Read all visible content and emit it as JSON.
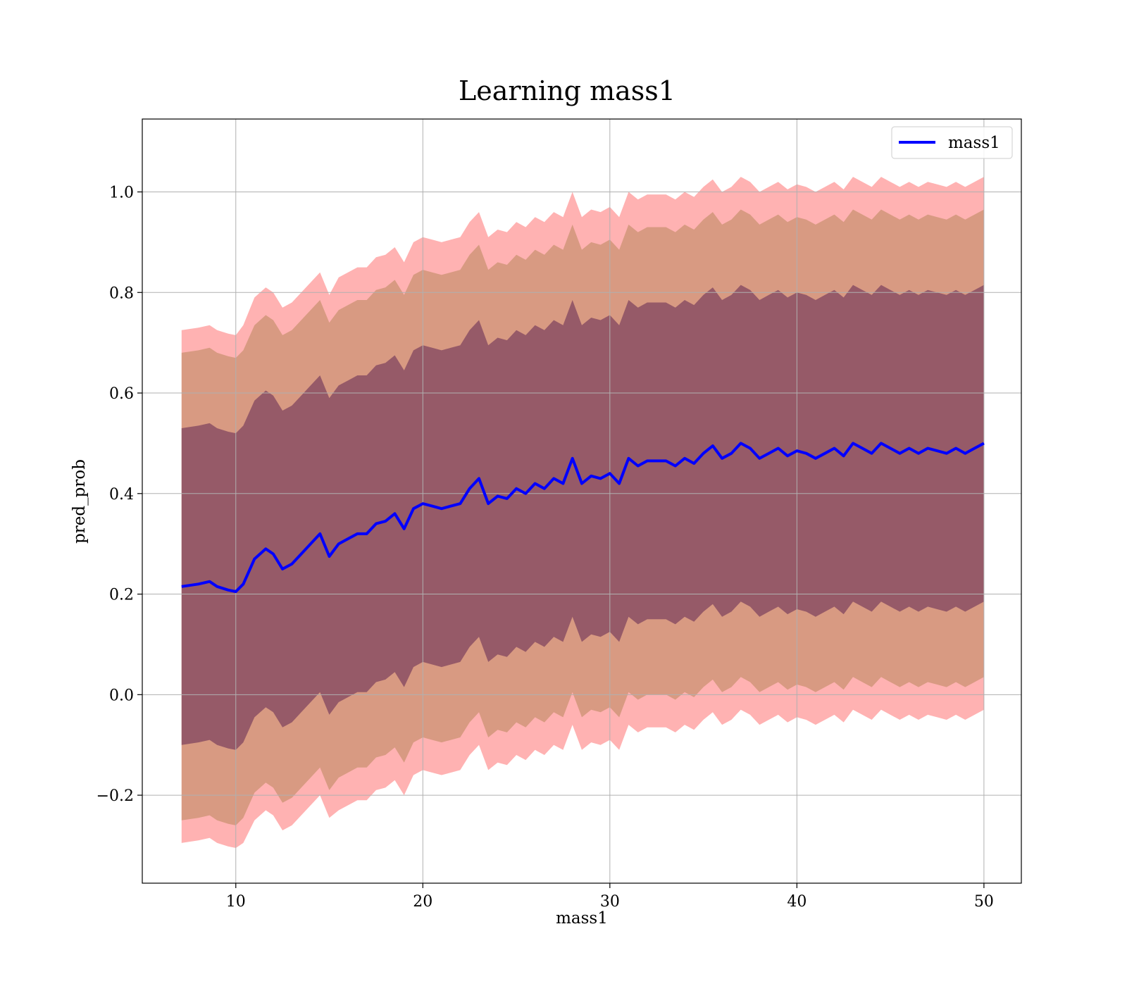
{
  "chart_data": {
    "type": "line",
    "title": "Learning mass1",
    "xlabel": "mass1",
    "ylabel": "pred_prob",
    "xlim": [
      5,
      52
    ],
    "ylim": [
      -0.375,
      1.145
    ],
    "xticks": [
      10,
      20,
      30,
      40,
      50
    ],
    "xtick_labels": [
      "10",
      "20",
      "30",
      "40",
      "50"
    ],
    "yticks": [
      -0.2,
      0.0,
      0.2,
      0.4,
      0.6,
      0.8,
      1.0
    ],
    "ytick_labels": [
      "−0.2",
      "0.0",
      "0.2",
      "0.4",
      "0.6",
      "0.8",
      "1.0"
    ],
    "grid": true,
    "legend": {
      "position": "top-right",
      "entries": [
        "mass1"
      ]
    },
    "series": [
      {
        "name": "mass1",
        "color": "#0000ff",
        "x": [
          7.1,
          8,
          8.6,
          9,
          9.6,
          10,
          10.4,
          11,
          11.6,
          12,
          12.5,
          13,
          13.5,
          14,
          14.5,
          15,
          15.5,
          16,
          16.5,
          17,
          17.5,
          18,
          18.5,
          19,
          19.5,
          20,
          20.5,
          21,
          21.5,
          22,
          22.5,
          23,
          23.5,
          24,
          24.5,
          25,
          25.5,
          26,
          26.5,
          27,
          27.5,
          28,
          28.5,
          29,
          29.5,
          30,
          30.5,
          31,
          31.5,
          32,
          32.5,
          33,
          33.5,
          34,
          34.5,
          35,
          35.5,
          36,
          36.5,
          37,
          37.5,
          38,
          38.5,
          39,
          39.5,
          40,
          40.5,
          41,
          41.5,
          42,
          42.5,
          43,
          43.5,
          44,
          44.5,
          45,
          45.5,
          46,
          46.5,
          47,
          47.5,
          48,
          48.5,
          49,
          49.5,
          50
        ],
        "y": [
          0.215,
          0.22,
          0.225,
          0.215,
          0.208,
          0.205,
          0.22,
          0.27,
          0.29,
          0.28,
          0.25,
          0.26,
          0.28,
          0.3,
          0.32,
          0.275,
          0.3,
          0.31,
          0.32,
          0.32,
          0.34,
          0.345,
          0.36,
          0.33,
          0.37,
          0.38,
          0.375,
          0.37,
          0.375,
          0.38,
          0.41,
          0.43,
          0.38,
          0.395,
          0.39,
          0.41,
          0.4,
          0.42,
          0.41,
          0.43,
          0.42,
          0.47,
          0.42,
          0.435,
          0.43,
          0.44,
          0.42,
          0.47,
          0.455,
          0.465,
          0.465,
          0.465,
          0.455,
          0.47,
          0.46,
          0.48,
          0.495,
          0.47,
          0.48,
          0.5,
          0.49,
          0.47,
          0.48,
          0.49,
          0.475,
          0.485,
          0.48,
          0.47,
          0.48,
          0.49,
          0.475,
          0.5,
          0.49,
          0.48,
          0.5,
          0.49,
          0.48,
          0.49,
          0.48,
          0.49,
          0.485,
          0.48,
          0.49,
          0.48,
          0.49,
          0.5
        ]
      }
    ],
    "bands": [
      {
        "label": "outer",
        "color": "#ff7f7f",
        "opacity": 0.6,
        "half_width": [
          0.51,
          0.51,
          0.51,
          0.51,
          0.51,
          0.51,
          0.515,
          0.52,
          0.52,
          0.52,
          0.52,
          0.52,
          0.52,
          0.52,
          0.52,
          0.52,
          0.53,
          0.53,
          0.53,
          0.53,
          0.53,
          0.53,
          0.53,
          0.53,
          0.53,
          0.53,
          0.53,
          0.53,
          0.53,
          0.53,
          0.53,
          0.53,
          0.53,
          0.53,
          0.53,
          0.53,
          0.53,
          0.53,
          0.53,
          0.53,
          0.53,
          0.53,
          0.53,
          0.53,
          0.53,
          0.53,
          0.53,
          0.53,
          0.53,
          0.53,
          0.53,
          0.53,
          0.53,
          0.53,
          0.53,
          0.53,
          0.53,
          0.53,
          0.53,
          0.53,
          0.53,
          0.53,
          0.53,
          0.53,
          0.53,
          0.53,
          0.53,
          0.53,
          0.53,
          0.53,
          0.53,
          0.53,
          0.53,
          0.53,
          0.53,
          0.53,
          0.53,
          0.53,
          0.53,
          0.53,
          0.53,
          0.53,
          0.53,
          0.53,
          0.53,
          0.53
        ]
      },
      {
        "label": "middle",
        "color": "#b8865b",
        "opacity": 0.55,
        "half_width": [
          0.465,
          0.465,
          0.465,
          0.465,
          0.465,
          0.465,
          0.465,
          0.465,
          0.465,
          0.465,
          0.465,
          0.465,
          0.465,
          0.465,
          0.465,
          0.465,
          0.465,
          0.465,
          0.465,
          0.465,
          0.465,
          0.465,
          0.465,
          0.465,
          0.465,
          0.465,
          0.465,
          0.465,
          0.465,
          0.465,
          0.465,
          0.465,
          0.465,
          0.465,
          0.465,
          0.465,
          0.465,
          0.465,
          0.465,
          0.465,
          0.465,
          0.465,
          0.465,
          0.465,
          0.465,
          0.465,
          0.465,
          0.465,
          0.465,
          0.465,
          0.465,
          0.465,
          0.465,
          0.465,
          0.465,
          0.465,
          0.465,
          0.465,
          0.465,
          0.465,
          0.465,
          0.465,
          0.465,
          0.465,
          0.465,
          0.465,
          0.465,
          0.465,
          0.465,
          0.465,
          0.465,
          0.465,
          0.465,
          0.465,
          0.465,
          0.465,
          0.465,
          0.465,
          0.465,
          0.465,
          0.465,
          0.465,
          0.465,
          0.465,
          0.465,
          0.465
        ]
      },
      {
        "label": "inner",
        "color": "#7a3f5c",
        "opacity": 0.7,
        "half_width": [
          0.315,
          0.315,
          0.315,
          0.315,
          0.315,
          0.315,
          0.315,
          0.315,
          0.315,
          0.315,
          0.315,
          0.315,
          0.315,
          0.315,
          0.315,
          0.315,
          0.315,
          0.315,
          0.315,
          0.315,
          0.315,
          0.315,
          0.315,
          0.315,
          0.315,
          0.315,
          0.315,
          0.315,
          0.315,
          0.315,
          0.315,
          0.315,
          0.315,
          0.315,
          0.315,
          0.315,
          0.315,
          0.315,
          0.315,
          0.315,
          0.315,
          0.315,
          0.315,
          0.315,
          0.315,
          0.315,
          0.315,
          0.315,
          0.315,
          0.315,
          0.315,
          0.315,
          0.315,
          0.315,
          0.315,
          0.315,
          0.315,
          0.315,
          0.315,
          0.315,
          0.315,
          0.315,
          0.315,
          0.315,
          0.315,
          0.315,
          0.315,
          0.315,
          0.315,
          0.315,
          0.315,
          0.315,
          0.315,
          0.315,
          0.315,
          0.315,
          0.315,
          0.315,
          0.315,
          0.315,
          0.315,
          0.315,
          0.315,
          0.315,
          0.315,
          0.315
        ]
      }
    ]
  }
}
